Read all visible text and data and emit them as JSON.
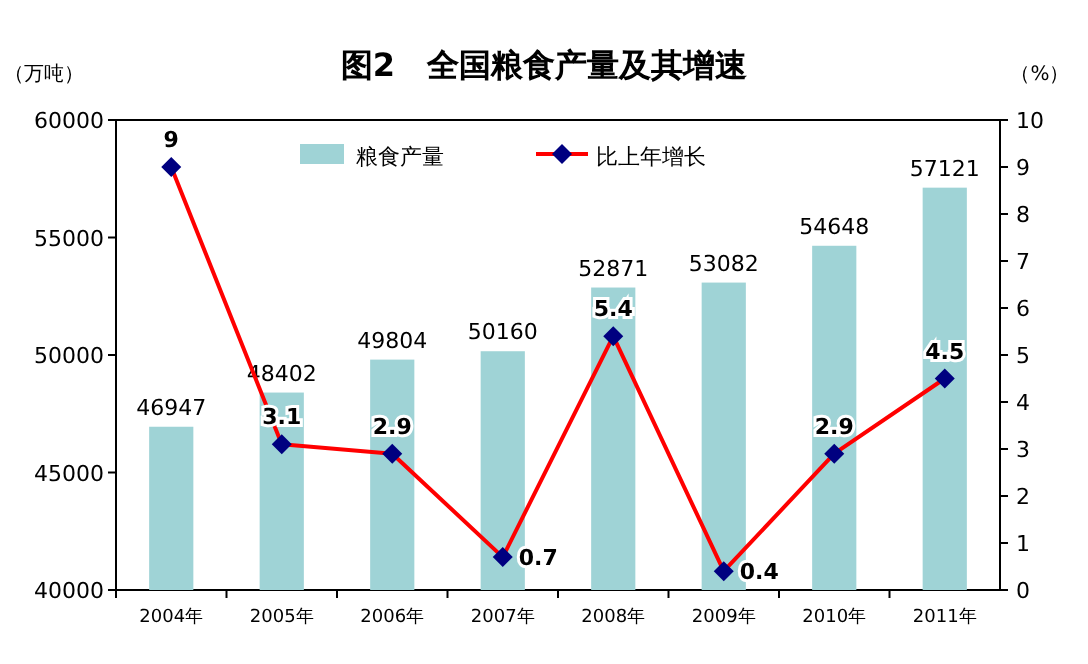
{
  "chart_data": {
    "type": "bar",
    "title": "图2　全国粮食产量及其增速",
    "ylabel": "（万吨）",
    "y2label": "（%）",
    "categories": [
      "2004年",
      "2005年",
      "2006年",
      "2007年",
      "2008年",
      "2009年",
      "2010年",
      "2011年"
    ],
    "series": [
      {
        "name": "粮食产量",
        "color": "#9fd3d6",
        "values": [
          46947,
          48402,
          49804,
          50160,
          52871,
          53082,
          54648,
          57121
        ]
      },
      {
        "name": "比上年增长",
        "type": "line",
        "axis": "y2",
        "color": "#ff0000",
        "marker": "diamond",
        "values": [
          9,
          3.1,
          2.9,
          0.7,
          5.4,
          0.4,
          2.9,
          4.5
        ]
      }
    ],
    "ylim": [
      40000,
      60000
    ],
    "yticks": [
      40000,
      45000,
      50000,
      55000,
      60000
    ],
    "y2lim": [
      0,
      10
    ],
    "y2ticks": [
      0,
      1,
      2,
      3,
      4,
      5,
      6,
      7,
      8,
      9,
      10
    ],
    "data_labels": true,
    "legend": "top",
    "grid": false
  }
}
